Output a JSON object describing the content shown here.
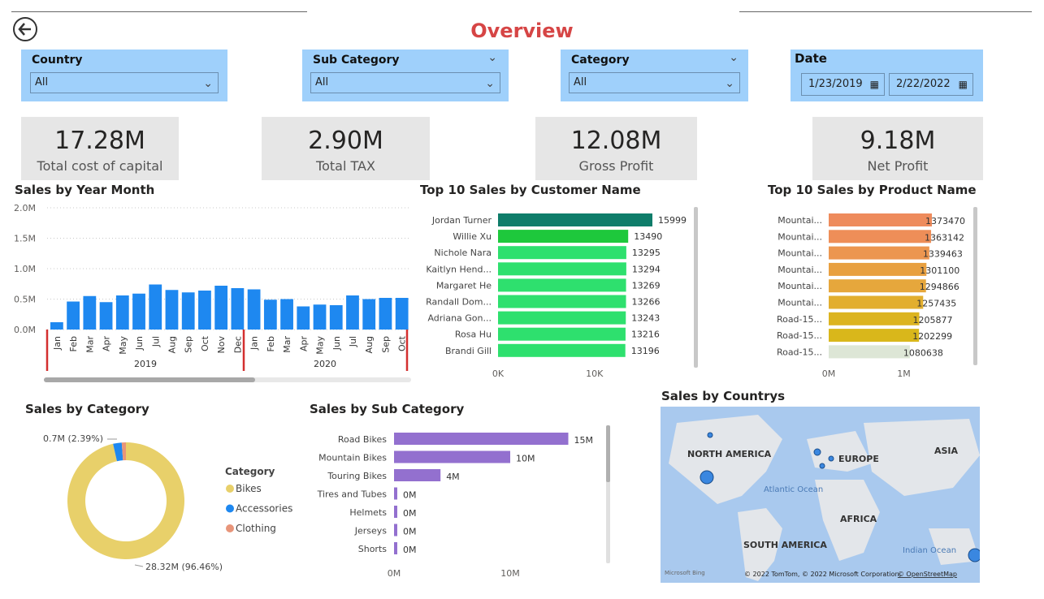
{
  "page": {
    "title": "Overview"
  },
  "slicers": {
    "country": {
      "label": "Country",
      "value": "All"
    },
    "sub_category": {
      "label": "Sub Category",
      "value": "All"
    },
    "category": {
      "label": "Category",
      "value": "All"
    },
    "date": {
      "label": "Date",
      "start": "1/23/2019",
      "end": "2/22/2022"
    }
  },
  "cards": [
    {
      "value": "17.28M",
      "label": "Total cost of capital"
    },
    {
      "value": "2.90M",
      "label": "Total TAX"
    },
    {
      "value": "12.08M",
      "label": "Gross Profit"
    },
    {
      "value": "9.18M",
      "label": "Net Profit"
    }
  ],
  "colors": {
    "accent_blue": "#1e88f0",
    "slicer_bg": "#9fd0fb",
    "title_red": "#d64545",
    "purple": "#9370cf",
    "donut_yellow": "#e8d06a"
  },
  "chart_data": [
    {
      "type": "bar",
      "title": "Sales by Year Month",
      "y_ticks": [
        "2.0M",
        "1.5M",
        "1.0M",
        "0.5M",
        "0.0M"
      ],
      "ylim": [
        0,
        2000000
      ],
      "categories": [
        "Jan",
        "Feb",
        "Mar",
        "Apr",
        "May",
        "Jun",
        "Jul",
        "Aug",
        "Sep",
        "Oct",
        "Nov",
        "Dec",
        "Jan",
        "Feb",
        "Mar",
        "Apr",
        "May",
        "Jun",
        "Jul",
        "Aug",
        "Sep",
        "Oct"
      ],
      "years": [
        "2019",
        "2020"
      ],
      "values": [
        120000,
        460000,
        550000,
        450000,
        560000,
        590000,
        740000,
        650000,
        610000,
        640000,
        720000,
        680000,
        660000,
        490000,
        500000,
        380000,
        410000,
        400000,
        560000,
        500000,
        520000,
        520000
      ]
    },
    {
      "type": "bar",
      "title": "Top 10 Sales by Customer Name",
      "categories": [
        "Jordan Turner",
        "Willie Xu",
        "Nichole Nara",
        "Kaitlyn Hend...",
        "Margaret He",
        "Randall Dom...",
        "Adriana Gon...",
        "Rosa Hu",
        "Brandi Gill"
      ],
      "values": [
        15999,
        13490,
        13295,
        13294,
        13269,
        13266,
        13243,
        13216,
        13196
      ],
      "x_ticks": [
        "0K",
        "10K"
      ],
      "xlim": [
        0,
        20000
      ]
    },
    {
      "type": "bar",
      "title": "Top 10 Sales by Product Name",
      "categories": [
        "Mountai...",
        "Mountai...",
        "Mountai...",
        "Mountai...",
        "Mountai...",
        "Mountai...",
        "Road-15...",
        "Road-15...",
        "Road-15..."
      ],
      "values": [
        1373470,
        1363142,
        1339463,
        1301100,
        1294866,
        1257435,
        1205877,
        1202299,
        1080638
      ],
      "x_ticks": [
        "0M",
        "1M"
      ],
      "xlim": [
        0,
        2000000
      ]
    },
    {
      "type": "pie",
      "title": "Sales by Category",
      "legend_title": "Category",
      "categories": [
        "Bikes",
        "Accessories",
        "Clothing"
      ],
      "values": [
        96.46,
        2.39,
        1.15
      ],
      "labels": [
        "28.32M (96.46%)",
        "0.7M (2.39%)"
      ],
      "colors": [
        "#e8d06a",
        "#1e88f0",
        "#e8957a"
      ]
    },
    {
      "type": "bar",
      "title": "Sales by Sub Category",
      "categories": [
        "Road Bikes",
        "Mountain Bikes",
        "Touring Bikes",
        "Tires and Tubes",
        "Helmets",
        "Jerseys",
        "Shorts"
      ],
      "values": [
        15,
        10,
        4,
        0.2,
        0.2,
        0.2,
        0.1
      ],
      "value_labels": [
        "15M",
        "10M",
        "4M",
        "0M",
        "0M",
        "0M",
        "0M"
      ],
      "x_ticks": [
        "0M",
        "10M"
      ],
      "xlim": [
        0,
        20
      ]
    }
  ],
  "map": {
    "title": "Sales by Countrys",
    "labels": [
      "NORTH AMERICA",
      "EUROPE",
      "ASIA",
      "AFRICA",
      "SOUTH AMERICA",
      "Atlantic Ocean",
      "Indian Ocean"
    ],
    "brand": "Microsoft Bing",
    "copyright": "© 2022 TomTom, © 2022 Microsoft Corporation,",
    "osm": "© OpenStreetMap"
  }
}
